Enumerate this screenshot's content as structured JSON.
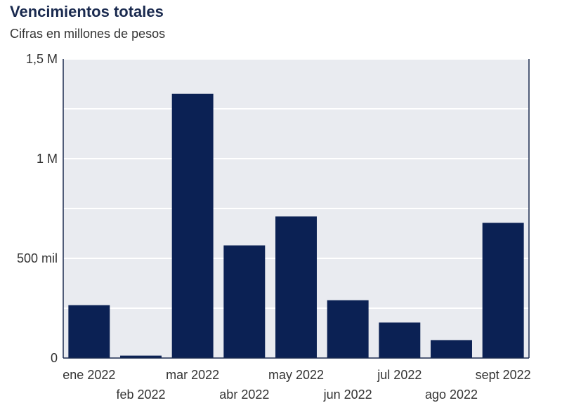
{
  "title": "Vencimientos totales",
  "subtitle": "Cifras en millones de pesos",
  "colors": {
    "bar": "#0b2154",
    "plot_bg": "#e9ebf0",
    "grid": "#ffffff",
    "axis": "#1a2a4f"
  },
  "chart_data": {
    "type": "bar",
    "title": "Vencimientos totales",
    "subtitle": "Cifras en millones de pesos",
    "categories": [
      "ene 2022",
      "feb 2022",
      "mar 2022",
      "abr 2022",
      "may 2022",
      "jun 2022",
      "jul 2022",
      "ago 2022",
      "sept 2022"
    ],
    "values": [
      265000,
      12000,
      1325000,
      565000,
      710000,
      290000,
      178000,
      90000,
      678000
    ],
    "ylim": [
      0,
      1500000
    ],
    "yticks": [
      0,
      500000,
      1000000,
      1500000
    ],
    "ytick_labels": [
      "0",
      "500 mil",
      "1 M",
      "1,5 M"
    ],
    "xlabel": "",
    "ylabel": "",
    "grid": true
  }
}
